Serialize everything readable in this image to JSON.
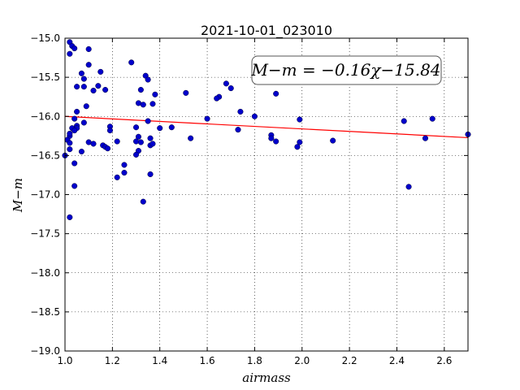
{
  "chart_data": {
    "type": "scatter",
    "title": "2021-10-01_023010",
    "xlabel": "airmass",
    "ylabel": "M−m",
    "xlim": [
      1.0,
      2.7
    ],
    "ylim": [
      -19.0,
      -15.0
    ],
    "y_inverted": true,
    "grid": true,
    "x_ticks": [
      1.0,
      1.2,
      1.4,
      1.6,
      1.8,
      2.0,
      2.2,
      2.4,
      2.6
    ],
    "x_tick_labels": [
      "1.0",
      "1.2",
      "1.4",
      "1.6",
      "1.8",
      "2.0",
      "2.2",
      "2.4",
      "2.6"
    ],
    "y_ticks": [
      -15.0,
      -15.5,
      -16.0,
      -16.5,
      -17.0,
      -17.5,
      -18.0,
      -18.5,
      -19.0
    ],
    "y_tick_labels": [
      "−15.0",
      "−15.5",
      "−16.0",
      "−16.5",
      "−17.0",
      "−17.5",
      "−18.0",
      "−18.5",
      "−19.0"
    ],
    "annotation": "M−m = −0.16χ−15.84",
    "fit": {
      "slope": -0.16,
      "intercept": -15.84,
      "color": "#ff0000"
    },
    "point_color": "#0000cc",
    "points": [
      [
        1.02,
        -15.05
      ],
      [
        1.03,
        -15.1
      ],
      [
        1.04,
        -15.13
      ],
      [
        1.02,
        -15.2
      ],
      [
        1.1,
        -15.14
      ],
      [
        1.28,
        -15.31
      ],
      [
        1.1,
        -15.34
      ],
      [
        1.07,
        -15.45
      ],
      [
        1.15,
        -15.43
      ],
      [
        1.08,
        -15.52
      ],
      [
        1.34,
        -15.48
      ],
      [
        1.35,
        -15.53
      ],
      [
        1.05,
        -15.62
      ],
      [
        1.08,
        -15.62
      ],
      [
        1.14,
        -15.61
      ],
      [
        1.12,
        -15.67
      ],
      [
        1.17,
        -15.66
      ],
      [
        1.32,
        -15.66
      ],
      [
        1.38,
        -15.72
      ],
      [
        1.51,
        -15.7
      ],
      [
        1.68,
        -15.58
      ],
      [
        1.7,
        -15.64
      ],
      [
        1.65,
        -15.75
      ],
      [
        1.64,
        -15.77
      ],
      [
        1.89,
        -15.71
      ],
      [
        1.31,
        -15.83
      ],
      [
        1.33,
        -15.85
      ],
      [
        1.37,
        -15.84
      ],
      [
        1.09,
        -15.87
      ],
      [
        1.05,
        -15.94
      ],
      [
        1.74,
        -15.94
      ],
      [
        1.8,
        -16.0
      ],
      [
        1.04,
        -16.03
      ],
      [
        1.6,
        -16.03
      ],
      [
        1.99,
        -16.04
      ],
      [
        2.43,
        -16.06
      ],
      [
        2.55,
        -16.03
      ],
      [
        1.35,
        -16.06
      ],
      [
        1.08,
        -16.08
      ],
      [
        1.05,
        -16.12
      ],
      [
        1.03,
        -16.15
      ],
      [
        1.05,
        -16.15
      ],
      [
        1.04,
        -16.18
      ],
      [
        1.19,
        -16.13
      ],
      [
        1.19,
        -16.18
      ],
      [
        1.3,
        -16.14
      ],
      [
        1.4,
        -16.15
      ],
      [
        1.45,
        -16.14
      ],
      [
        1.73,
        -16.17
      ],
      [
        1.02,
        -16.25
      ],
      [
        1.02,
        -16.22
      ],
      [
        1.31,
        -16.26
      ],
      [
        1.36,
        -16.28
      ],
      [
        1.53,
        -16.28
      ],
      [
        1.87,
        -16.24
      ],
      [
        1.87,
        -16.28
      ],
      [
        1.89,
        -16.32
      ],
      [
        2.13,
        -16.31
      ],
      [
        2.52,
        -16.28
      ],
      [
        2.7,
        -16.23
      ],
      [
        1.01,
        -16.3
      ],
      [
        1.02,
        -16.34
      ],
      [
        1.1,
        -16.33
      ],
      [
        1.12,
        -16.35
      ],
      [
        1.16,
        -16.37
      ],
      [
        1.17,
        -16.39
      ],
      [
        1.18,
        -16.41
      ],
      [
        1.22,
        -16.32
      ],
      [
        1.3,
        -16.32
      ],
      [
        1.32,
        -16.33
      ],
      [
        1.36,
        -16.37
      ],
      [
        1.37,
        -16.35
      ],
      [
        1.99,
        -16.33
      ],
      [
        1.98,
        -16.39
      ],
      [
        1.02,
        -16.42
      ],
      [
        1.07,
        -16.45
      ],
      [
        1.31,
        -16.44
      ],
      [
        1.3,
        -16.49
      ],
      [
        1.0,
        -16.5
      ],
      [
        1.04,
        -16.6
      ],
      [
        1.25,
        -16.62
      ],
      [
        1.25,
        -16.72
      ],
      [
        1.36,
        -16.74
      ],
      [
        1.22,
        -16.78
      ],
      [
        1.04,
        -16.89
      ],
      [
        2.45,
        -16.9
      ],
      [
        1.33,
        -17.09
      ],
      [
        1.02,
        -17.29
      ]
    ]
  }
}
